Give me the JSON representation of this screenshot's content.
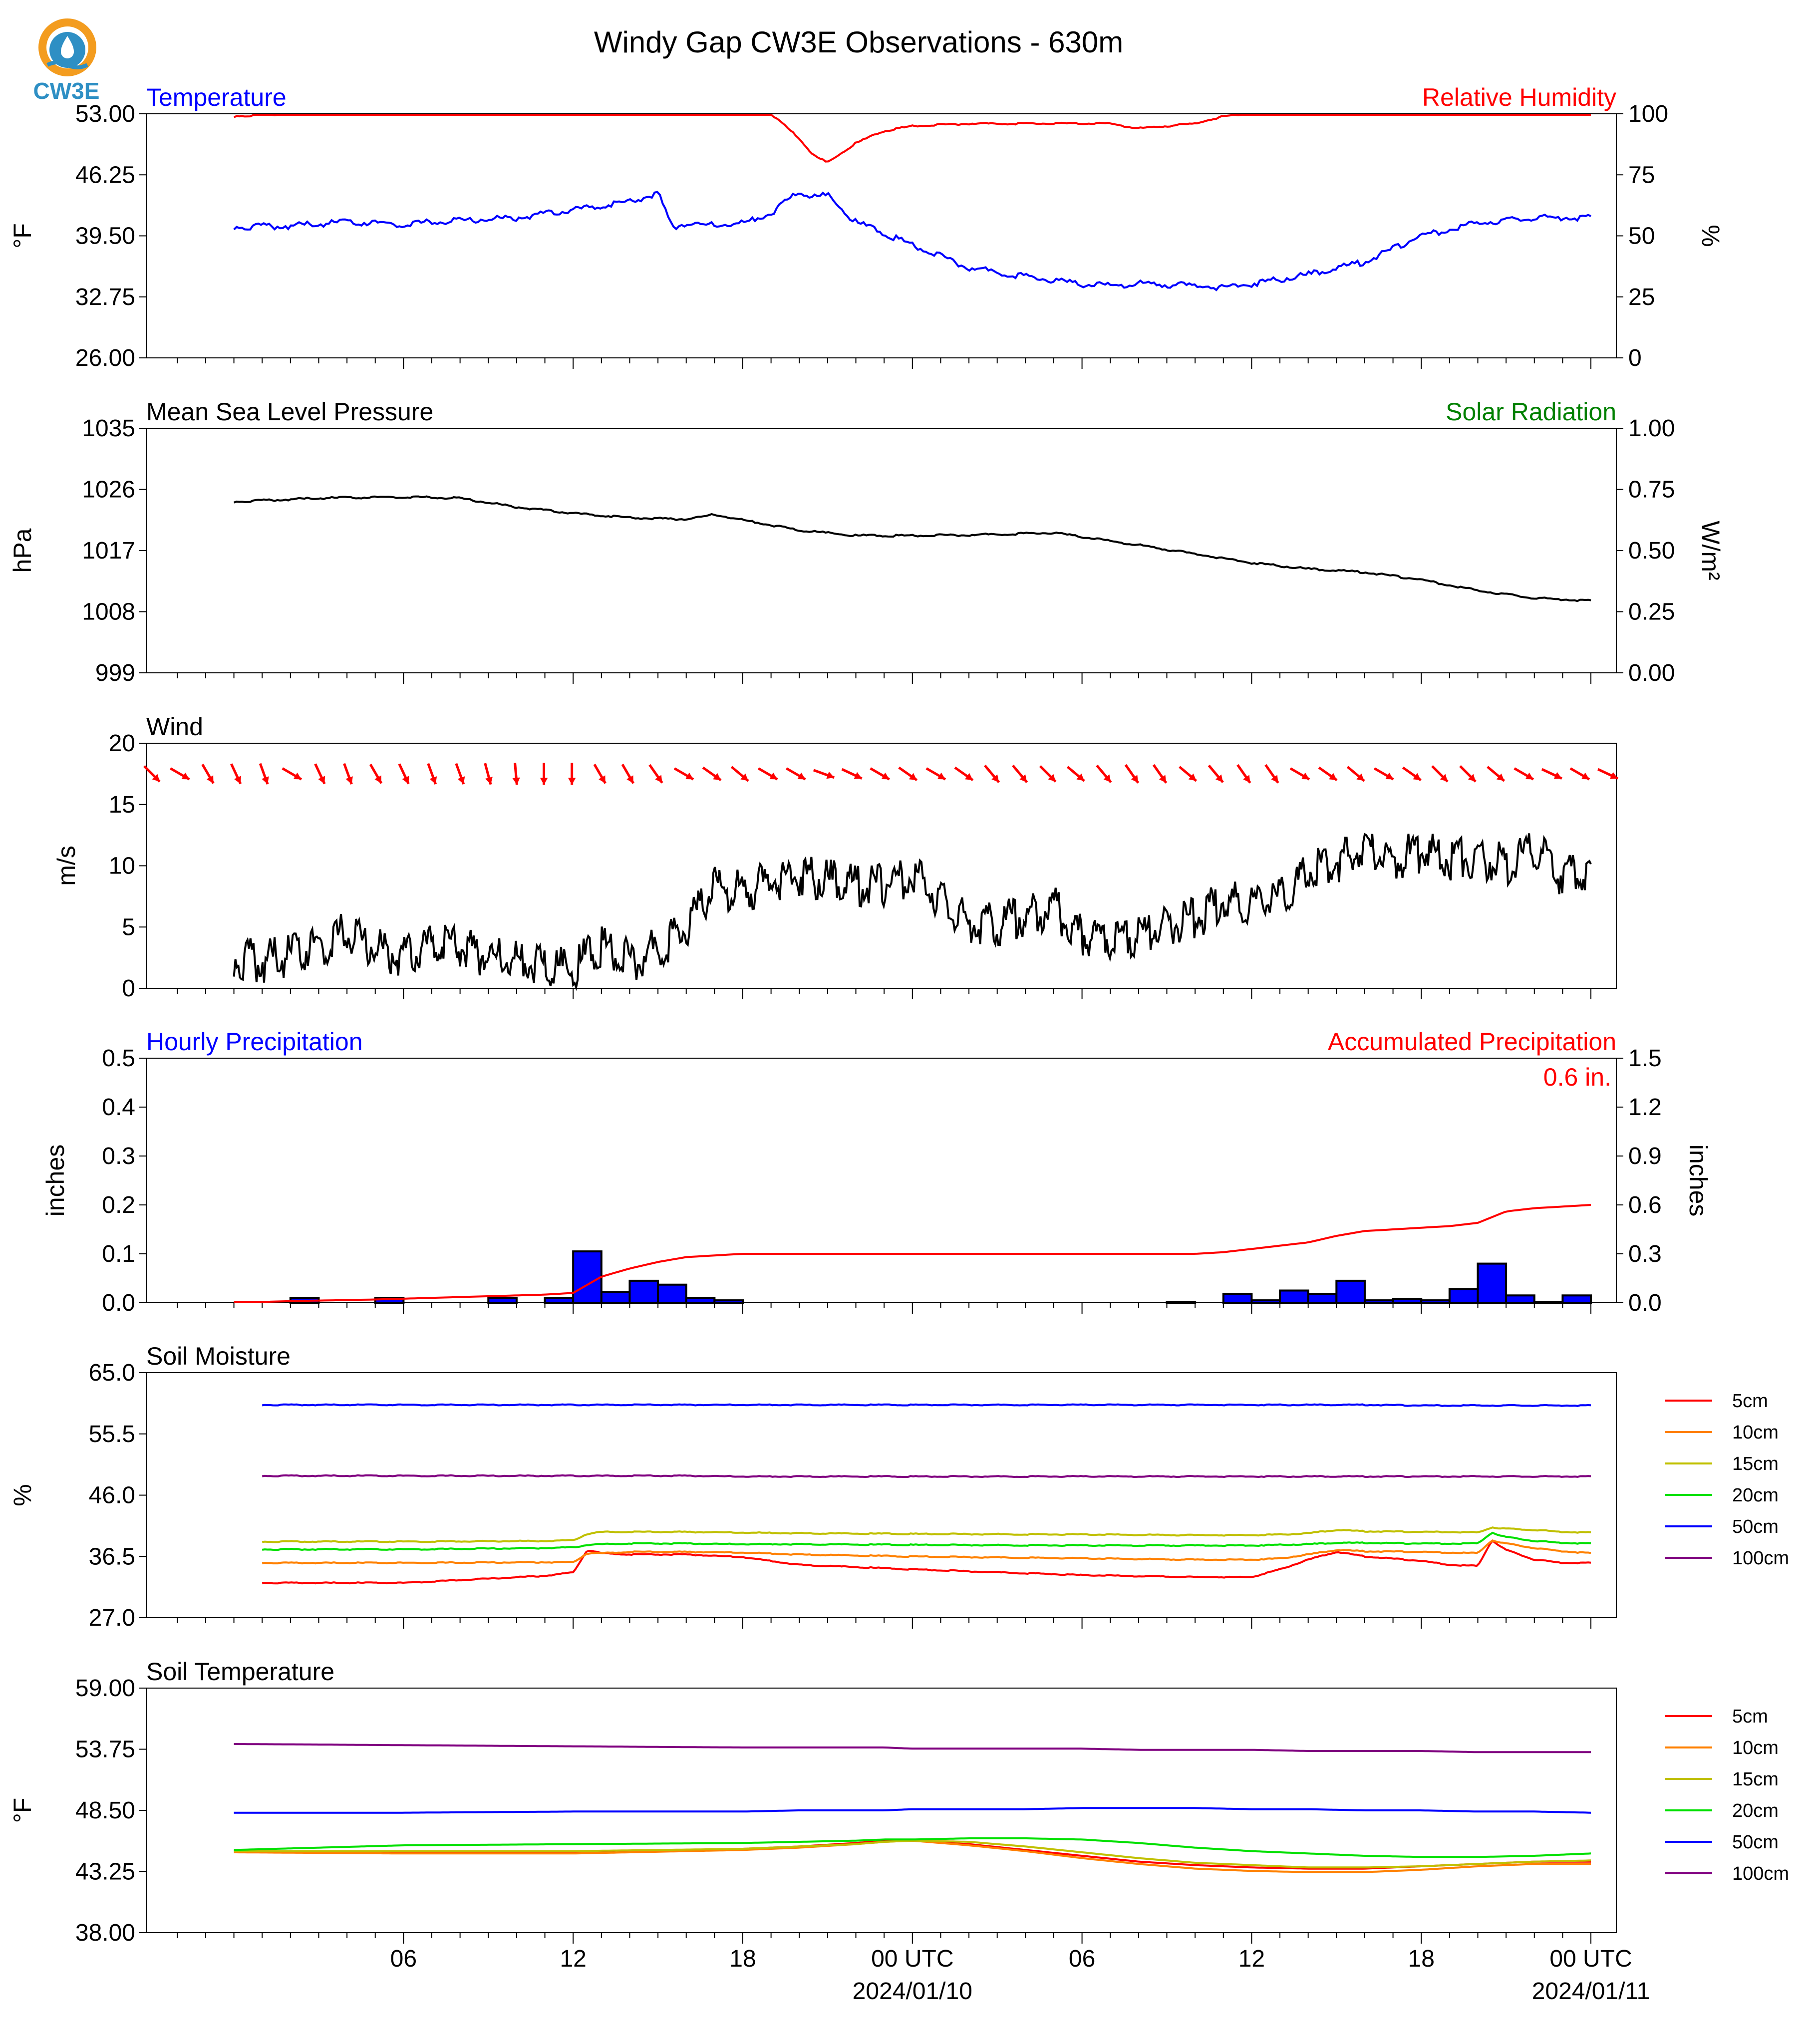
{
  "figure": {
    "title": "Windy Gap CW3E Observations - 630m",
    "logo_text": "CW3E",
    "x_ticks": [
      "06",
      "12",
      "18",
      "00 UTC",
      "06",
      "12",
      "18",
      "00 UTC"
    ],
    "x_dates": [
      "2024/01/10",
      "2024/01/11"
    ]
  },
  "chart_data": [
    {
      "type": "line",
      "title": "Temperature",
      "title_right": "Relative Humidity",
      "ylabel": "°F",
      "ylabel_right": "%",
      "ylim": [
        26,
        53
      ],
      "ylim_right": [
        0,
        100
      ],
      "yticks": [
        "53.00",
        "46.25",
        "39.50",
        "32.75",
        "26.00"
      ],
      "yticks_right": [
        "100",
        "75",
        "50",
        "25",
        "0"
      ],
      "x_hours": [
        0,
        2,
        4,
        6,
        8,
        10,
        12,
        14,
        15,
        15.5,
        16,
        17,
        18,
        19,
        20,
        20.5,
        21,
        22,
        23,
        24,
        26,
        28,
        30,
        31,
        32,
        34,
        35,
        36,
        38,
        40,
        42,
        44,
        46,
        48
      ],
      "series": [
        {
          "name": "Temperature",
          "axis": "left",
          "color": "#0000ff",
          "values": [
            40.5,
            40.6,
            41.0,
            40.8,
            41.2,
            41.5,
            42.4,
            43.2,
            44.2,
            40.5,
            40.8,
            40.7,
            40.9,
            42.0,
            44.5,
            43.8,
            44.0,
            41.0,
            39.8,
            38.5,
            36.0,
            35.0,
            34.1,
            34.0,
            34.2,
            34.0,
            33.8,
            34.2,
            35.2,
            36.6,
            39.5,
            40.9,
            41.5,
            41.5
          ]
        },
        {
          "name": "Relative Humidity",
          "axis": "right",
          "color": "#ff0000",
          "values": [
            99,
            100,
            100,
            100,
            100,
            100,
            100,
            100,
            100,
            100,
            100,
            100,
            100,
            100,
            90,
            83,
            80,
            88,
            93,
            95,
            96,
            96,
            96,
            96,
            94,
            96,
            99,
            100,
            100,
            100,
            100,
            100,
            100,
            100
          ]
        }
      ]
    },
    {
      "type": "line",
      "title": "Mean Sea Level Pressure",
      "title_right": "Solar Radiation",
      "ylabel": "hPa",
      "ylabel_right": "W/m²",
      "ylim": [
        999,
        1035
      ],
      "ylim_right": [
        0.0,
        1.0
      ],
      "yticks": [
        "1035",
        "1026",
        "1017",
        "1008",
        "999"
      ],
      "yticks_right": [
        "1.00",
        "0.75",
        "0.50",
        "0.25",
        "0.00"
      ],
      "x_hours": [
        0,
        3,
        6,
        8,
        10,
        12,
        14,
        16,
        17,
        18,
        20,
        22,
        24,
        26,
        28,
        29,
        30,
        32,
        34,
        36,
        38,
        40,
        42,
        44,
        46,
        48
      ],
      "series": [
        {
          "name": "Mean Sea Level Pressure",
          "axis": "left",
          "color": "#000000",
          "values": [
            1024.2,
            1024.7,
            1024.9,
            1024.7,
            1023.4,
            1022.5,
            1021.8,
            1021.6,
            1022.3,
            1021.5,
            1020.0,
            1019.2,
            1019.2,
            1019.3,
            1019.5,
            1019.6,
            1019.0,
            1017.8,
            1016.5,
            1015.2,
            1014.3,
            1013.8,
            1012.7,
            1011.1,
            1010.0,
            1009.6
          ]
        }
      ]
    },
    {
      "type": "line",
      "title": "Wind",
      "ylabel": "m/s",
      "ylim": [
        0,
        20
      ],
      "yticks": [
        "20",
        "15",
        "10",
        "5",
        "0"
      ],
      "x_hours": [
        0,
        1,
        2,
        3,
        4,
        5,
        6,
        7,
        8,
        9,
        10,
        11,
        12,
        13,
        14,
        15,
        16,
        17,
        18,
        19,
        20,
        21,
        22,
        23,
        24,
        25,
        26,
        27,
        28,
        29,
        30,
        31,
        32,
        33,
        34,
        35,
        36,
        37,
        38,
        39,
        40,
        41,
        42,
        43,
        44,
        45,
        46,
        47,
        48
      ],
      "series": [
        {
          "name": "Wind Speed",
          "axis": "left",
          "color": "#000000",
          "values": [
            2.5,
            2.2,
            2.6,
            3.5,
            4.5,
            3.3,
            2.6,
            3.7,
            3.2,
            2.6,
            2.3,
            2.0,
            1.5,
            3.6,
            2.2,
            3.4,
            4.8,
            8.2,
            7.8,
            8.8,
            9.3,
            8.8,
            8.3,
            8.4,
            9.2,
            7.2,
            5.2,
            5.2,
            6.0,
            6.6,
            4.4,
            4.1,
            4.3,
            5.1,
            5.7,
            7.0,
            7.0,
            7.4,
            9.5,
            10.2,
            11.4,
            10.4,
            11.2,
            10.6,
            10.8,
            10.0,
            11.5,
            9.2,
            9.6
          ]
        }
      ],
      "wind_barb_directions_deg": [
        315,
        300,
        330,
        335,
        340,
        300,
        335,
        340,
        330,
        335,
        340,
        340,
        345,
        355,
        0,
        0,
        330,
        330,
        325,
        300,
        305,
        310,
        300,
        300,
        290,
        295,
        300,
        305,
        300,
        305,
        320,
        320,
        315,
        310,
        320,
        325,
        325,
        310,
        320,
        325,
        325,
        300,
        305,
        310,
        300,
        305,
        315,
        315,
        310,
        300,
        295,
        300,
        295
      ]
    },
    {
      "type": "bar",
      "title": "Hourly Precipitation",
      "title_right": "Accumulated Precipitation",
      "total_label": "0.6 in.",
      "ylabel": "inches",
      "ylabel_right": "inches",
      "ylim": [
        0,
        0.5
      ],
      "ylim_right": [
        0,
        1.5
      ],
      "yticks": [
        "0.5",
        "0.4",
        "0.3",
        "0.2",
        "0.1",
        "0.0"
      ],
      "yticks_right": [
        "1.5",
        "1.2",
        "0.9",
        "0.6",
        "0.3",
        "0.0"
      ],
      "bar_hour_start": [
        2,
        5,
        9,
        11,
        11,
        12,
        13,
        14,
        15,
        16,
        17,
        33,
        35,
        36,
        37,
        38,
        39,
        40,
        41,
        42,
        43,
        44,
        45,
        46,
        47
      ],
      "values": [
        0.01,
        0.01,
        0.01,
        0.01,
        0.0,
        0.105,
        0.022,
        0.045,
        0.037,
        0.01,
        0.005,
        0.002,
        0.018,
        0.005,
        0.025,
        0.018,
        0.045,
        0.005,
        0.008,
        0.005,
        0.028,
        0.08,
        0.015,
        0.002,
        0.015
      ],
      "series": [
        {
          "name": "Accumulated Precipitation",
          "axis": "right",
          "color": "#ff0000",
          "x_hours": [
            0,
            2,
            5,
            9,
            11,
            12,
            13,
            14,
            15,
            16,
            17,
            18,
            24,
            30,
            34,
            35,
            36,
            37,
            38,
            39,
            40,
            41,
            42,
            43,
            44,
            45,
            46,
            47,
            48
          ],
          "values": [
            0.0,
            0.01,
            0.02,
            0.04,
            0.05,
            0.06,
            0.16,
            0.21,
            0.25,
            0.28,
            0.29,
            0.3,
            0.3,
            0.3,
            0.3,
            0.31,
            0.33,
            0.35,
            0.37,
            0.41,
            0.44,
            0.45,
            0.46,
            0.47,
            0.49,
            0.56,
            0.58,
            0.59,
            0.6
          ]
        }
      ]
    },
    {
      "type": "line",
      "title": "Soil Moisture",
      "ylabel": "%",
      "ylim": [
        27,
        65
      ],
      "yticks": [
        "65.0",
        "55.5",
        "46.0",
        "36.5",
        "27.0"
      ],
      "x_hours": [
        1,
        6,
        11,
        12,
        12.5,
        13,
        14,
        16,
        18,
        20,
        24,
        30,
        34,
        36,
        37,
        38,
        39,
        40,
        42,
        43,
        44,
        44.5,
        45,
        46,
        47,
        48
      ],
      "legend": [
        "5cm",
        "10cm",
        "15cm",
        "20cm",
        "50cm",
        "100cm"
      ],
      "series": [
        {
          "name": "5cm",
          "color": "#ff0000",
          "values": [
            32.4,
            32.4,
            33.5,
            34.0,
            37.5,
            37.0,
            36.8,
            36.8,
            36.4,
            35.2,
            34.5,
            33.6,
            33.3,
            33.3,
            34.5,
            36.0,
            37.2,
            36.5,
            35.8,
            35.2,
            35.0,
            39.0,
            37.5,
            36.0,
            35.5,
            35.5
          ]
        },
        {
          "name": "10cm",
          "color": "#ff8000",
          "values": [
            35.5,
            35.5,
            35.6,
            35.6,
            37.0,
            37.0,
            37.2,
            37.2,
            37.1,
            36.8,
            36.5,
            36.2,
            36.0,
            36.0,
            36.2,
            36.8,
            37.5,
            37.3,
            37.2,
            37.1,
            37.0,
            39.0,
            38.5,
            37.8,
            37.3,
            37.0
          ]
        },
        {
          "name": "15cm",
          "color": "#c0c000",
          "values": [
            38.8,
            38.8,
            38.9,
            39.0,
            40.0,
            40.3,
            40.3,
            40.3,
            40.2,
            40.1,
            40.0,
            39.9,
            39.8,
            39.8,
            39.9,
            40.1,
            40.6,
            40.4,
            40.3,
            40.3,
            40.2,
            41.0,
            40.8,
            40.6,
            40.3,
            40.2
          ]
        },
        {
          "name": "20cm",
          "color": "#00e000",
          "values": [
            37.6,
            37.6,
            37.8,
            37.9,
            38.3,
            38.4,
            38.5,
            38.5,
            38.4,
            38.4,
            38.3,
            38.2,
            38.2,
            38.2,
            38.3,
            38.4,
            38.6,
            38.6,
            38.5,
            38.5,
            38.5,
            40.2,
            39.5,
            38.9,
            38.6,
            38.5
          ]
        },
        {
          "name": "50cm",
          "color": "#0000ff",
          "values": [
            60.0,
            60.0,
            60.0,
            60.0,
            60.0,
            60.0,
            60.0,
            60.0,
            60.0,
            60.0,
            60.0,
            60.0,
            60.0,
            60.0,
            60.0,
            60.0,
            60.0,
            60.0,
            59.9,
            59.9,
            59.9,
            59.9,
            59.9,
            59.9,
            59.9,
            59.9
          ]
        },
        {
          "name": "100cm",
          "color": "#800080",
          "values": [
            49.0,
            49.0,
            49.0,
            49.0,
            49.0,
            49.0,
            49.0,
            49.0,
            48.9,
            48.9,
            48.9,
            48.9,
            48.9,
            48.9,
            48.9,
            48.9,
            48.9,
            48.9,
            48.9,
            48.9,
            48.9,
            48.9,
            48.9,
            48.9,
            48.9,
            48.9
          ]
        }
      ]
    },
    {
      "type": "line",
      "title": "Soil Temperature",
      "ylabel": "°F",
      "ylim": [
        38,
        59
      ],
      "yticks": [
        "59.00",
        "53.75",
        "48.50",
        "43.25",
        "38.00"
      ],
      "x_hours": [
        0,
        6,
        12,
        18,
        20,
        22,
        23,
        24,
        26,
        28,
        30,
        32,
        34,
        36,
        38,
        40,
        42,
        44,
        46,
        48
      ],
      "legend": [
        "5cm",
        "10cm",
        "15cm",
        "20cm",
        "50cm",
        "100cm"
      ],
      "series": [
        {
          "name": "5cm",
          "color": "#ff0000",
          "values": [
            45.0,
            44.9,
            44.9,
            45.2,
            45.4,
            45.7,
            45.9,
            45.9,
            45.6,
            45.1,
            44.6,
            44.1,
            43.8,
            43.6,
            43.5,
            43.5,
            43.7,
            43.9,
            44.1,
            44.1
          ]
        },
        {
          "name": "10cm",
          "color": "#ff8000",
          "values": [
            44.9,
            44.8,
            44.8,
            45.1,
            45.3,
            45.6,
            45.8,
            45.9,
            45.5,
            45.0,
            44.4,
            43.9,
            43.5,
            43.3,
            43.2,
            43.2,
            43.4,
            43.7,
            43.9,
            43.9
          ]
        },
        {
          "name": "15cm",
          "color": "#c0c000",
          "values": [
            45.0,
            45.0,
            45.0,
            45.2,
            45.4,
            45.6,
            45.8,
            45.9,
            45.8,
            45.4,
            44.9,
            44.4,
            44.0,
            43.8,
            43.6,
            43.6,
            43.7,
            43.9,
            44.1,
            44.2
          ]
        },
        {
          "name": "20cm",
          "color": "#00e000",
          "values": [
            45.1,
            45.5,
            45.6,
            45.7,
            45.8,
            45.9,
            46.0,
            46.0,
            46.1,
            46.1,
            46.0,
            45.7,
            45.3,
            45.0,
            44.8,
            44.6,
            44.5,
            44.5,
            44.6,
            44.8
          ]
        },
        {
          "name": "50cm",
          "color": "#0000ff",
          "values": [
            48.3,
            48.3,
            48.4,
            48.4,
            48.5,
            48.5,
            48.5,
            48.6,
            48.6,
            48.6,
            48.7,
            48.7,
            48.7,
            48.6,
            48.6,
            48.5,
            48.5,
            48.4,
            48.4,
            48.3
          ]
        },
        {
          "name": "100cm",
          "color": "#800080",
          "values": [
            54.2,
            54.1,
            54.0,
            53.9,
            53.9,
            53.9,
            53.9,
            53.8,
            53.8,
            53.8,
            53.8,
            53.7,
            53.7,
            53.7,
            53.6,
            53.6,
            53.6,
            53.5,
            53.5,
            53.5
          ]
        }
      ]
    }
  ]
}
